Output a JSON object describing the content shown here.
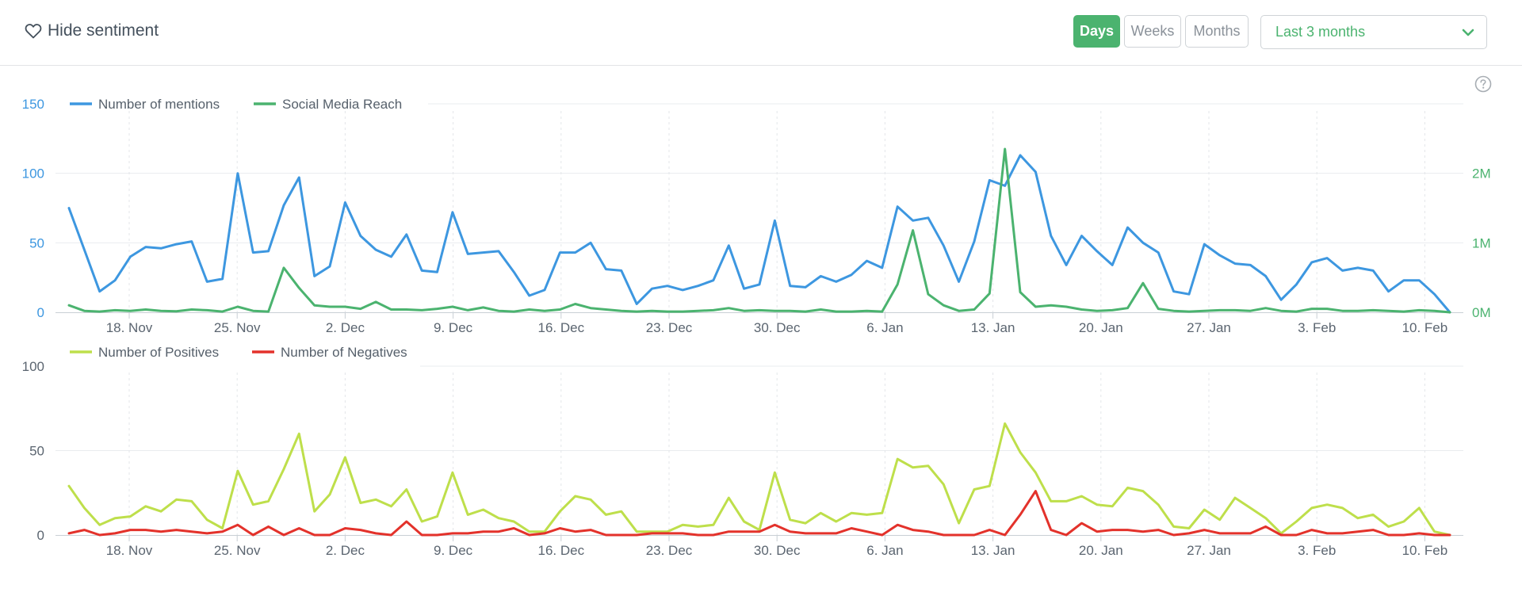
{
  "toolbar": {
    "hide_sentiment_label": "Hide sentiment",
    "periods": [
      "Days",
      "Weeks",
      "Months"
    ],
    "active_period": "Days",
    "range_value": "Last 3 months"
  },
  "colors": {
    "mentions": "#3d97e0",
    "reach": "#4bb36f",
    "positives": "#bedf4b",
    "negatives": "#e3322b",
    "axis_left": "#3d97e0",
    "axis_right": "#4bb36f",
    "axis_bottom": "#5b6570"
  },
  "chart_data": [
    {
      "type": "line",
      "x_labels": [
        "18. Nov",
        "25. Nov",
        "2. Dec",
        "9. Dec",
        "16. Dec",
        "23. Dec",
        "30. Dec",
        "6. Jan",
        "13. Jan",
        "20. Jan",
        "27. Jan",
        "3. Feb",
        "10. Feb"
      ],
      "y_left": {
        "ticks": [
          "0",
          "50",
          "100",
          "150"
        ],
        "ylim": [
          0,
          150
        ]
      },
      "y_right": {
        "ticks": [
          "0M",
          "1M",
          "2M"
        ],
        "ylim": [
          0,
          3000000
        ]
      },
      "legend": [
        "Number of mentions",
        "Social Media Reach"
      ],
      "series": [
        {
          "name": "Number of mentions",
          "axis": "left",
          "values": [
            75,
            45,
            15,
            23,
            40,
            47,
            46,
            49,
            51,
            22,
            24,
            100,
            43,
            44,
            77,
            97,
            26,
            33,
            79,
            55,
            45,
            40,
            56,
            30,
            29,
            72,
            42,
            43,
            44,
            29,
            12,
            16,
            43,
            43,
            50,
            31,
            30,
            6,
            17,
            19,
            16,
            19,
            23,
            48,
            17,
            20,
            66,
            19,
            18,
            26,
            22,
            27,
            37,
            32,
            76,
            66,
            68,
            48,
            22,
            51,
            95,
            91,
            113,
            101,
            55,
            34,
            55,
            44,
            34,
            61,
            50,
            43,
            15,
            13,
            49,
            41,
            35,
            34,
            26,
            9,
            20,
            36,
            39,
            30,
            32,
            30,
            15,
            23,
            23,
            13,
            0
          ]
        },
        {
          "name": "Social Media Reach",
          "axis": "right",
          "values": [
            100000,
            20000,
            10000,
            30000,
            20000,
            40000,
            20000,
            15000,
            40000,
            30000,
            10000,
            80000,
            20000,
            10000,
            640000,
            350000,
            100000,
            80000,
            80000,
            50000,
            150000,
            40000,
            40000,
            30000,
            50000,
            80000,
            30000,
            70000,
            20000,
            10000,
            40000,
            20000,
            40000,
            120000,
            60000,
            40000,
            20000,
            10000,
            20000,
            10000,
            10000,
            20000,
            30000,
            60000,
            20000,
            30000,
            20000,
            20000,
            10000,
            40000,
            10000,
            10000,
            20000,
            10000,
            400000,
            1180000,
            260000,
            100000,
            20000,
            40000,
            270000,
            2350000,
            290000,
            80000,
            100000,
            80000,
            40000,
            20000,
            30000,
            60000,
            420000,
            50000,
            20000,
            10000,
            20000,
            30000,
            30000,
            20000,
            60000,
            20000,
            10000,
            50000,
            50000,
            20000,
            20000,
            30000,
            20000,
            10000,
            30000,
            20000,
            0
          ]
        }
      ]
    },
    {
      "type": "line",
      "x_labels": [
        "18. Nov",
        "25. Nov",
        "2. Dec",
        "9. Dec",
        "16. Dec",
        "23. Dec",
        "30. Dec",
        "6. Jan",
        "13. Jan",
        "20. Jan",
        "27. Jan",
        "3. Feb",
        "10. Feb"
      ],
      "y_left": {
        "ticks": [
          "0",
          "50",
          "100"
        ],
        "ylim": [
          0,
          100
        ]
      },
      "legend": [
        "Number of Positives",
        "Number of Negatives"
      ],
      "series": [
        {
          "name": "Number of Positives",
          "values": [
            29,
            16,
            6,
            10,
            11,
            17,
            14,
            21,
            20,
            9,
            4,
            38,
            18,
            20,
            39,
            60,
            14,
            24,
            46,
            19,
            21,
            17,
            27,
            8,
            11,
            37,
            12,
            15,
            10,
            8,
            2,
            2,
            14,
            23,
            21,
            12,
            14,
            2,
            2,
            2,
            6,
            5,
            6,
            22,
            8,
            3,
            37,
            9,
            7,
            13,
            8,
            13,
            12,
            13,
            45,
            40,
            41,
            30,
            7,
            27,
            29,
            66,
            49,
            37,
            20,
            20,
            23,
            18,
            17,
            28,
            26,
            18,
            5,
            4,
            15,
            9,
            22,
            16,
            10,
            1,
            8,
            16,
            18,
            16,
            10,
            12,
            5,
            8,
            16,
            2,
            0
          ]
        },
        {
          "name": "Number of Negatives",
          "values": [
            1,
            3,
            0,
            1,
            3,
            3,
            2,
            3,
            2,
            1,
            2,
            6,
            0,
            5,
            0,
            4,
            0,
            0,
            4,
            3,
            1,
            0,
            8,
            0,
            0,
            1,
            1,
            2,
            2,
            4,
            0,
            1,
            4,
            2,
            3,
            0,
            0,
            0,
            1,
            1,
            1,
            0,
            0,
            2,
            2,
            2,
            6,
            2,
            1,
            1,
            1,
            4,
            2,
            0,
            6,
            3,
            2,
            0,
            0,
            0,
            3,
            0,
            12,
            26,
            3,
            0,
            7,
            2,
            3,
            3,
            2,
            3,
            0,
            1,
            3,
            1,
            1,
            1,
            5,
            0,
            0,
            3,
            1,
            1,
            2,
            3,
            0,
            0,
            1,
            0,
            0
          ]
        }
      ]
    }
  ]
}
